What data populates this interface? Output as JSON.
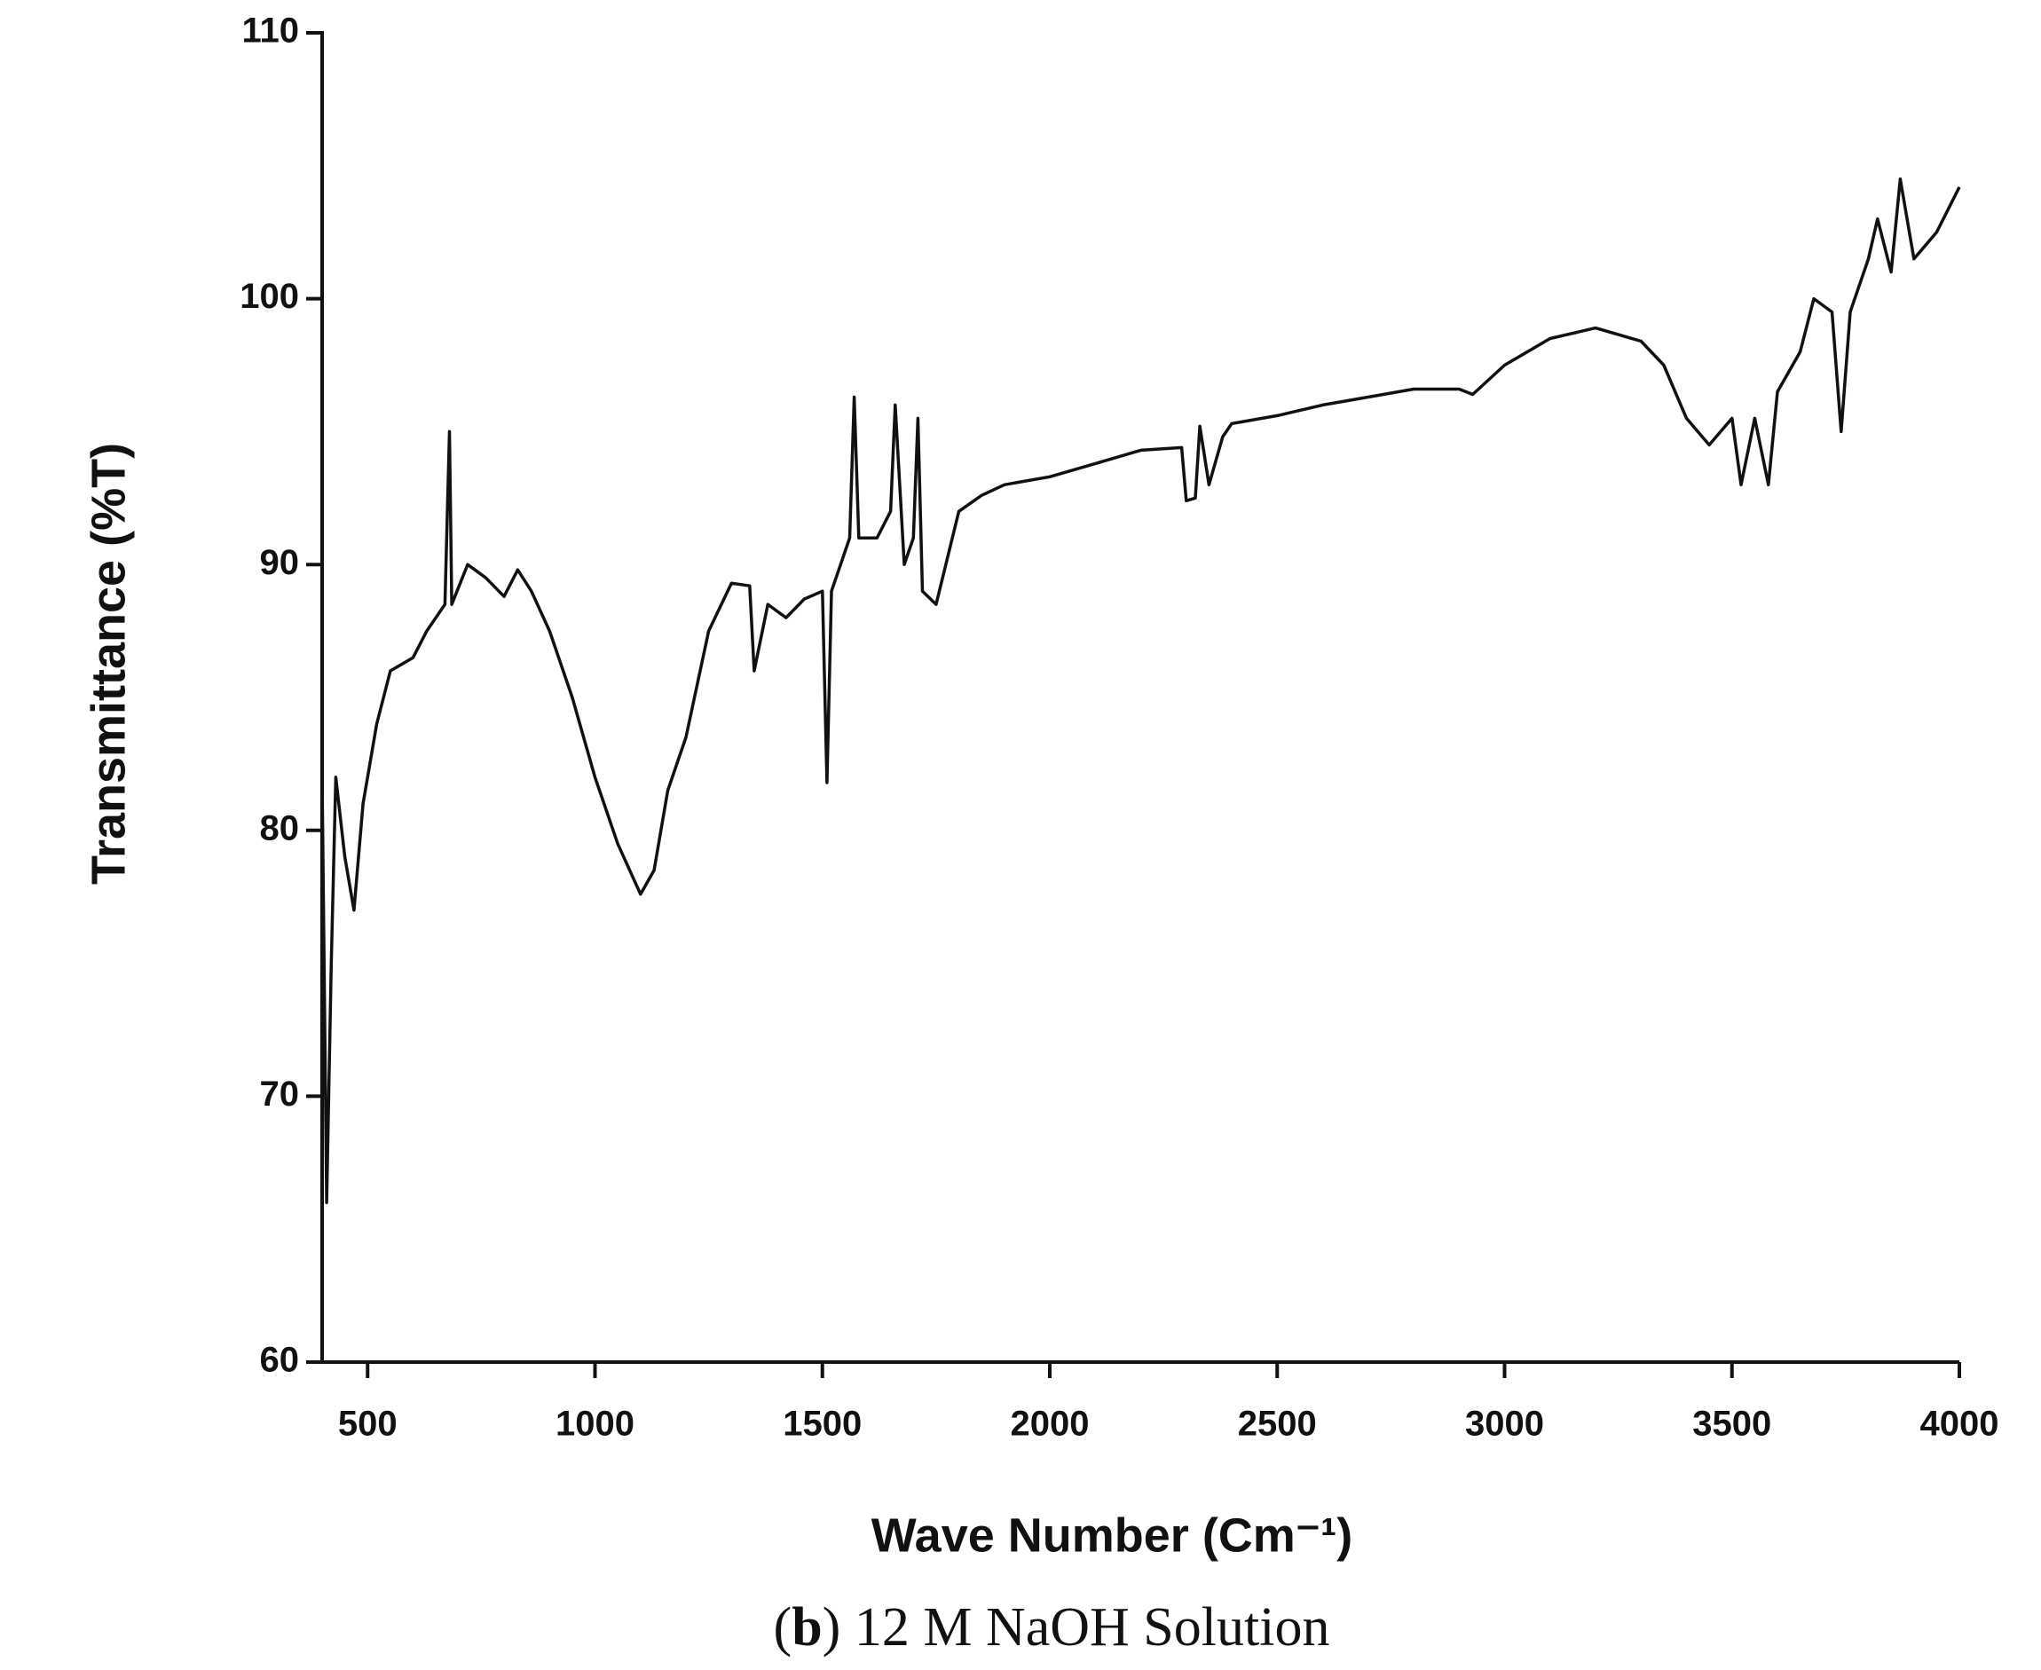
{
  "chart_data": {
    "type": "line",
    "x_label": "Wave Number (Cm⁻¹)",
    "y_label": "Transmittance (%T)",
    "caption": "(b) 12 M NaOH Solution",
    "color": "#111111",
    "x": [
      400,
      410,
      420,
      430,
      450,
      470,
      490,
      520,
      550,
      600,
      630,
      670,
      680,
      685,
      720,
      760,
      800,
      830,
      860,
      900,
      950,
      1000,
      1050,
      1100,
      1130,
      1160,
      1200,
      1250,
      1300,
      1340,
      1350,
      1380,
      1420,
      1460,
      1500,
      1510,
      1520,
      1560,
      1570,
      1580,
      1620,
      1650,
      1660,
      1680,
      1700,
      1710,
      1720,
      1750,
      1800,
      1850,
      1900,
      2000,
      2100,
      2200,
      2290,
      2300,
      2320,
      2330,
      2350,
      2380,
      2400,
      2500,
      2600,
      2700,
      2800,
      2900,
      2930,
      3000,
      3100,
      3200,
      3300,
      3350,
      3400,
      3450,
      3500,
      3520,
      3550,
      3580,
      3600,
      3650,
      3680,
      3720,
      3740,
      3760,
      3800,
      3820,
      3850,
      3870,
      3900,
      3950,
      4000
    ],
    "values": [
      82,
      66,
      75,
      82,
      79,
      77,
      81,
      84,
      86,
      86.5,
      87.5,
      88.5,
      95,
      88.5,
      90,
      89.5,
      88.8,
      89.8,
      89,
      87.5,
      85,
      82,
      79.5,
      77.6,
      78.5,
      81.5,
      83.5,
      87.5,
      89.3,
      89.2,
      86,
      88.5,
      88,
      88.7,
      89,
      81.8,
      89,
      91,
      96.3,
      91,
      91,
      92,
      96,
      90,
      91,
      95.5,
      89,
      88.5,
      92,
      92.6,
      93,
      93.3,
      93.8,
      94.3,
      94.4,
      92.4,
      92.5,
      95.2,
      93,
      94.8,
      95.3,
      95.6,
      96,
      96.3,
      96.6,
      96.6,
      96.4,
      97.5,
      98.5,
      98.9,
      98.4,
      97.5,
      95.5,
      94.5,
      95.5,
      93,
      95.5,
      93,
      96.5,
      98,
      100,
      99.5,
      95,
      99.5,
      101.5,
      103,
      101,
      104.5,
      101.5,
      102.5,
      104.2
    ],
    "xlim": [
      400,
      4000
    ],
    "ylim": [
      60,
      110
    ],
    "xticks": [
      500,
      1000,
      1500,
      2000,
      2500,
      3000,
      3500,
      4000
    ],
    "yticks": [
      60,
      70,
      80,
      90,
      100,
      110
    ]
  }
}
